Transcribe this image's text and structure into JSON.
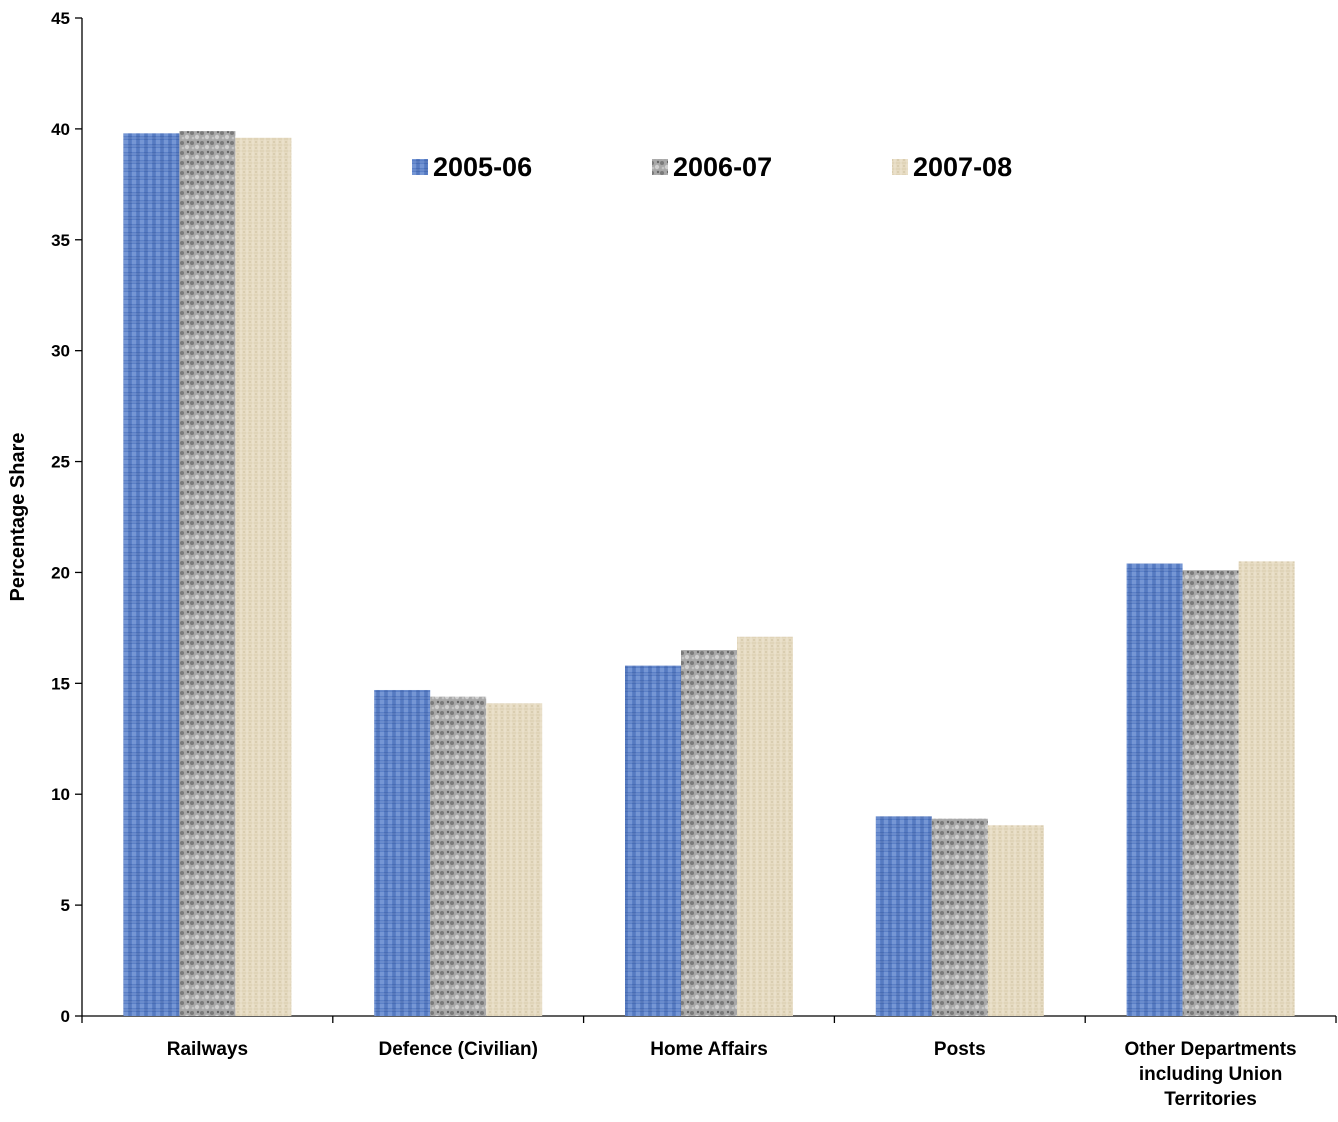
{
  "chart_data": {
    "type": "bar",
    "title": "",
    "xlabel": "",
    "ylabel": "Percentage Share",
    "ylim": [
      0,
      45
    ],
    "yticks": [
      0,
      5,
      10,
      15,
      20,
      25,
      30,
      35,
      40,
      45
    ],
    "grid": false,
    "legend_position": "top-center",
    "categories": [
      "Railways",
      "Defence (Civilian)",
      "Home Affairs",
      "Posts",
      "Other Departments including Union Territories"
    ],
    "series": [
      {
        "name": "2005-06",
        "values": [
          39.8,
          14.7,
          15.8,
          9.0,
          20.4
        ],
        "color": "#5b80c7"
      },
      {
        "name": "2006-07",
        "values": [
          39.9,
          14.4,
          16.5,
          8.9,
          20.1
        ],
        "color": "#a3a3a3"
      },
      {
        "name": "2007-08",
        "values": [
          39.6,
          14.1,
          17.1,
          8.6,
          20.5
        ],
        "color": "#e6dbc2"
      }
    ]
  }
}
